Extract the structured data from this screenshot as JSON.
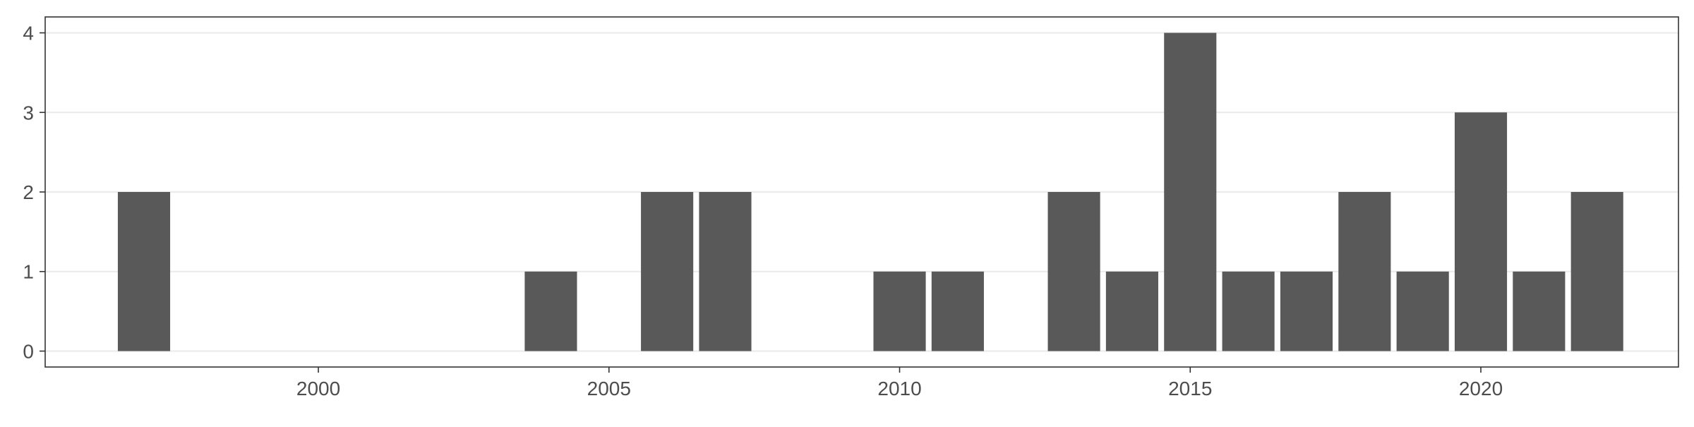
{
  "chart_data": {
    "type": "bar",
    "title": "",
    "xlabel": "",
    "ylabel": "",
    "x": [
      1997,
      2004,
      2006,
      2007,
      2010,
      2011,
      2013,
      2014,
      2015,
      2016,
      2017,
      2018,
      2019,
      2020,
      2021,
      2022
    ],
    "values": [
      2,
      1,
      2,
      2,
      1,
      1,
      2,
      1,
      4,
      1,
      1,
      2,
      1,
      3,
      1,
      2
    ],
    "xlim": [
      1995.3,
      2023.4
    ],
    "ylim": [
      -0.2,
      4.2
    ],
    "x_ticks": [
      "2000",
      "2005",
      "2010",
      "2015",
      "2020"
    ],
    "y_ticks": [
      "0",
      "1",
      "2",
      "3",
      "4"
    ],
    "grid": "horizontal major",
    "legend": "none",
    "colors": {
      "bar": "#595959",
      "grid": "#ebebeb",
      "axis": "#333333",
      "tick_text": "#4d4d4d"
    }
  }
}
